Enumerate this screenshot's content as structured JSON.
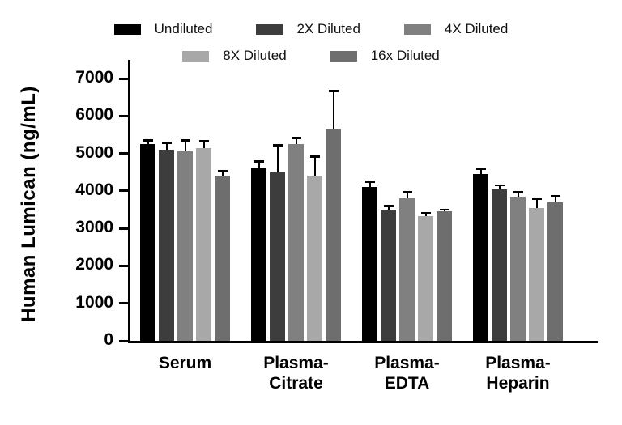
{
  "chart_data": {
    "type": "bar",
    "title": "",
    "ylabel": "Human Lumican (ng/mL)",
    "xlabel": "",
    "ylim": [
      0,
      7000
    ],
    "yticks": [
      0,
      1000,
      2000,
      3000,
      4000,
      5000,
      6000,
      7000
    ],
    "grid": false,
    "legend_position": "top",
    "legend_rows": [
      [
        0,
        1,
        2
      ],
      [
        3,
        4
      ]
    ],
    "categories": [
      "Serum",
      "Plasma-\nCitrate",
      "Plasma-\nEDTA",
      "Plasma-\nHeparin"
    ],
    "series": [
      {
        "name": "Undiluted",
        "color": "#000000",
        "values": [
          5250,
          4600,
          4100,
          4450
        ],
        "errors": [
          80,
          170,
          130,
          110
        ]
      },
      {
        "name": "2X Diluted",
        "color": "#3d3d3d",
        "values": [
          5100,
          4500,
          3500,
          4050
        ],
        "errors": [
          170,
          700,
          80,
          80
        ]
      },
      {
        "name": "4X Diluted",
        "color": "#808080",
        "values": [
          5050,
          5250,
          3800,
          3850
        ],
        "errors": [
          280,
          150,
          150,
          110
        ]
      },
      {
        "name": "8X Diluted",
        "color": "#a8a8a8",
        "values": [
          5150,
          4400,
          3320,
          3550
        ],
        "errors": [
          160,
          500,
          80,
          220
        ]
      },
      {
        "name": "16x Diluted",
        "color": "#6e6e6e",
        "values": [
          4400,
          5650,
          3450,
          3700
        ],
        "errors": [
          110,
          1000,
          30,
          150
        ]
      }
    ],
    "error_bar_color": "#000000",
    "axis_color": "#000000"
  }
}
